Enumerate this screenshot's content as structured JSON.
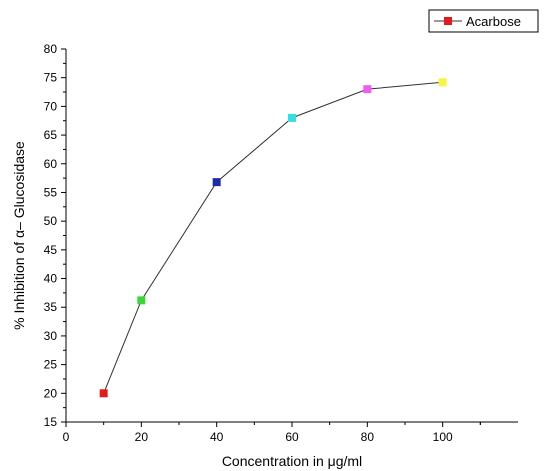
{
  "chart_data": {
    "type": "line",
    "xlabel": "Concentration in μg/ml",
    "ylabel": "% Inhibition of α– Glucosidase",
    "xlim": [
      0,
      120
    ],
    "ylim": [
      15,
      80
    ],
    "xticks": [
      0,
      20,
      40,
      60,
      80,
      100
    ],
    "yticks": [
      15,
      20,
      25,
      30,
      35,
      40,
      45,
      50,
      55,
      60,
      65,
      70,
      75,
      80
    ],
    "legend_position": "top-right",
    "series": [
      {
        "name": "Acarbose",
        "color": "#333333",
        "legend_marker_color": "#e31a1c",
        "points": [
          {
            "x": 10,
            "y": 20.0,
            "color": "#e31a1c"
          },
          {
            "x": 20,
            "y": 36.2,
            "color": "#3ad63a"
          },
          {
            "x": 40,
            "y": 56.8,
            "color": "#1f2aa8"
          },
          {
            "x": 60,
            "y": 68.0,
            "color": "#33e0e0"
          },
          {
            "x": 80,
            "y": 73.0,
            "color": "#f25cf2"
          },
          {
            "x": 100,
            "y": 74.2,
            "color": "#f5f542"
          }
        ]
      }
    ]
  }
}
